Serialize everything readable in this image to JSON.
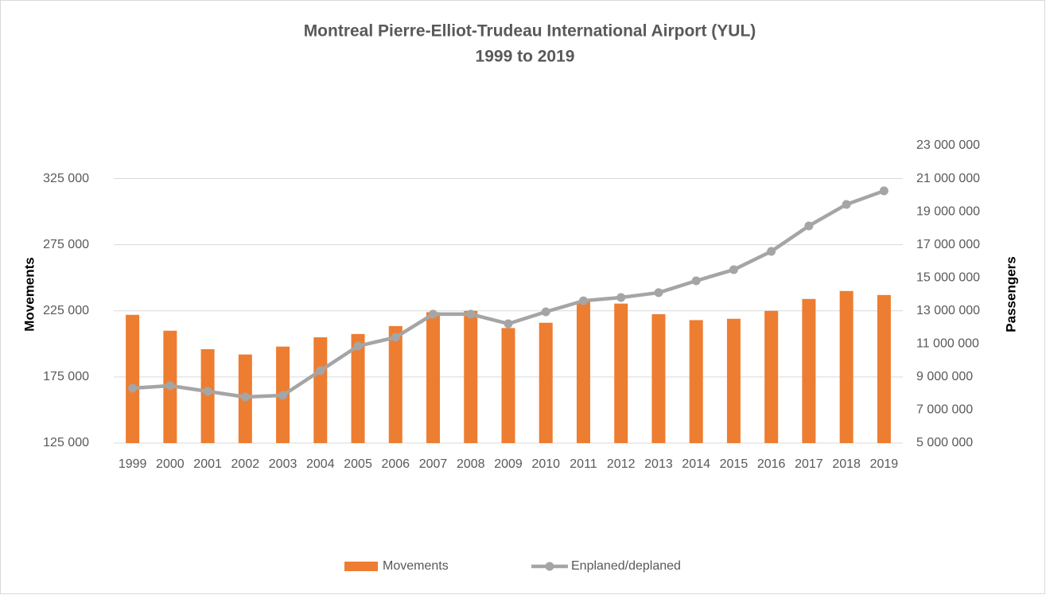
{
  "chart_data": {
    "type": "bar_line",
    "title": "Montreal Pierre-Elliot-Trudeau International Airport (YUL)",
    "subtitle": "1999 to 2019",
    "y_label": "Movements",
    "y2_label": "Passengers",
    "categories": [
      "1999",
      "2000",
      "2001",
      "2002",
      "2003",
      "2004",
      "2005",
      "2006",
      "2007",
      "2008",
      "2009",
      "2010",
      "2011",
      "2012",
      "2013",
      "2014",
      "2015",
      "2016",
      "2017",
      "2018",
      "2019"
    ],
    "series": [
      {
        "name": "Movements",
        "type": "bar",
        "color": "#ed7d31",
        "values": [
          222000,
          210000,
          196000,
          192000,
          198000,
          205000,
          207500,
          213500,
          224000,
          225000,
          212000,
          216000,
          232000,
          230500,
          222500,
          218000,
          219000,
          225000,
          234000,
          240000,
          237000
        ]
      },
      {
        "name": "Enplaned/deplaned",
        "type": "line",
        "axis": "y2",
        "color": "#a5a5a5",
        "values": [
          8320000,
          8470000,
          8130000,
          7790000,
          7890000,
          9380000,
          10870000,
          11400000,
          12800000,
          12800000,
          12220000,
          12940000,
          13610000,
          13810000,
          14100000,
          14820000,
          15490000,
          16600000,
          18140000,
          19440000,
          20260000
        ]
      }
    ],
    "ylim": [
      125000,
      350000
    ],
    "yticks": [
      {
        "value": 125000,
        "label": "125 000"
      },
      {
        "value": 175000,
        "label": "175 000"
      },
      {
        "value": 225000,
        "label": "225 000"
      },
      {
        "value": 275000,
        "label": "275 000"
      },
      {
        "value": 325000,
        "label": "325 000"
      }
    ],
    "y2lim": [
      5000000,
      23000000
    ],
    "y2ticks": [
      {
        "value": 5000000,
        "label": "5 000 000"
      },
      {
        "value": 7000000,
        "label": "7 000 000"
      },
      {
        "value": 9000000,
        "label": "9 000 000"
      },
      {
        "value": 11000000,
        "label": "11 000 000"
      },
      {
        "value": 13000000,
        "label": "13 000 000"
      },
      {
        "value": 15000000,
        "label": "15 000 000"
      },
      {
        "value": 17000000,
        "label": "17 000 000"
      },
      {
        "value": 19000000,
        "label": "19 000 000"
      },
      {
        "value": 21000000,
        "label": "21 000 000"
      },
      {
        "value": 23000000,
        "label": "23 000 000"
      }
    ],
    "grid": true,
    "legend": "bottom"
  }
}
